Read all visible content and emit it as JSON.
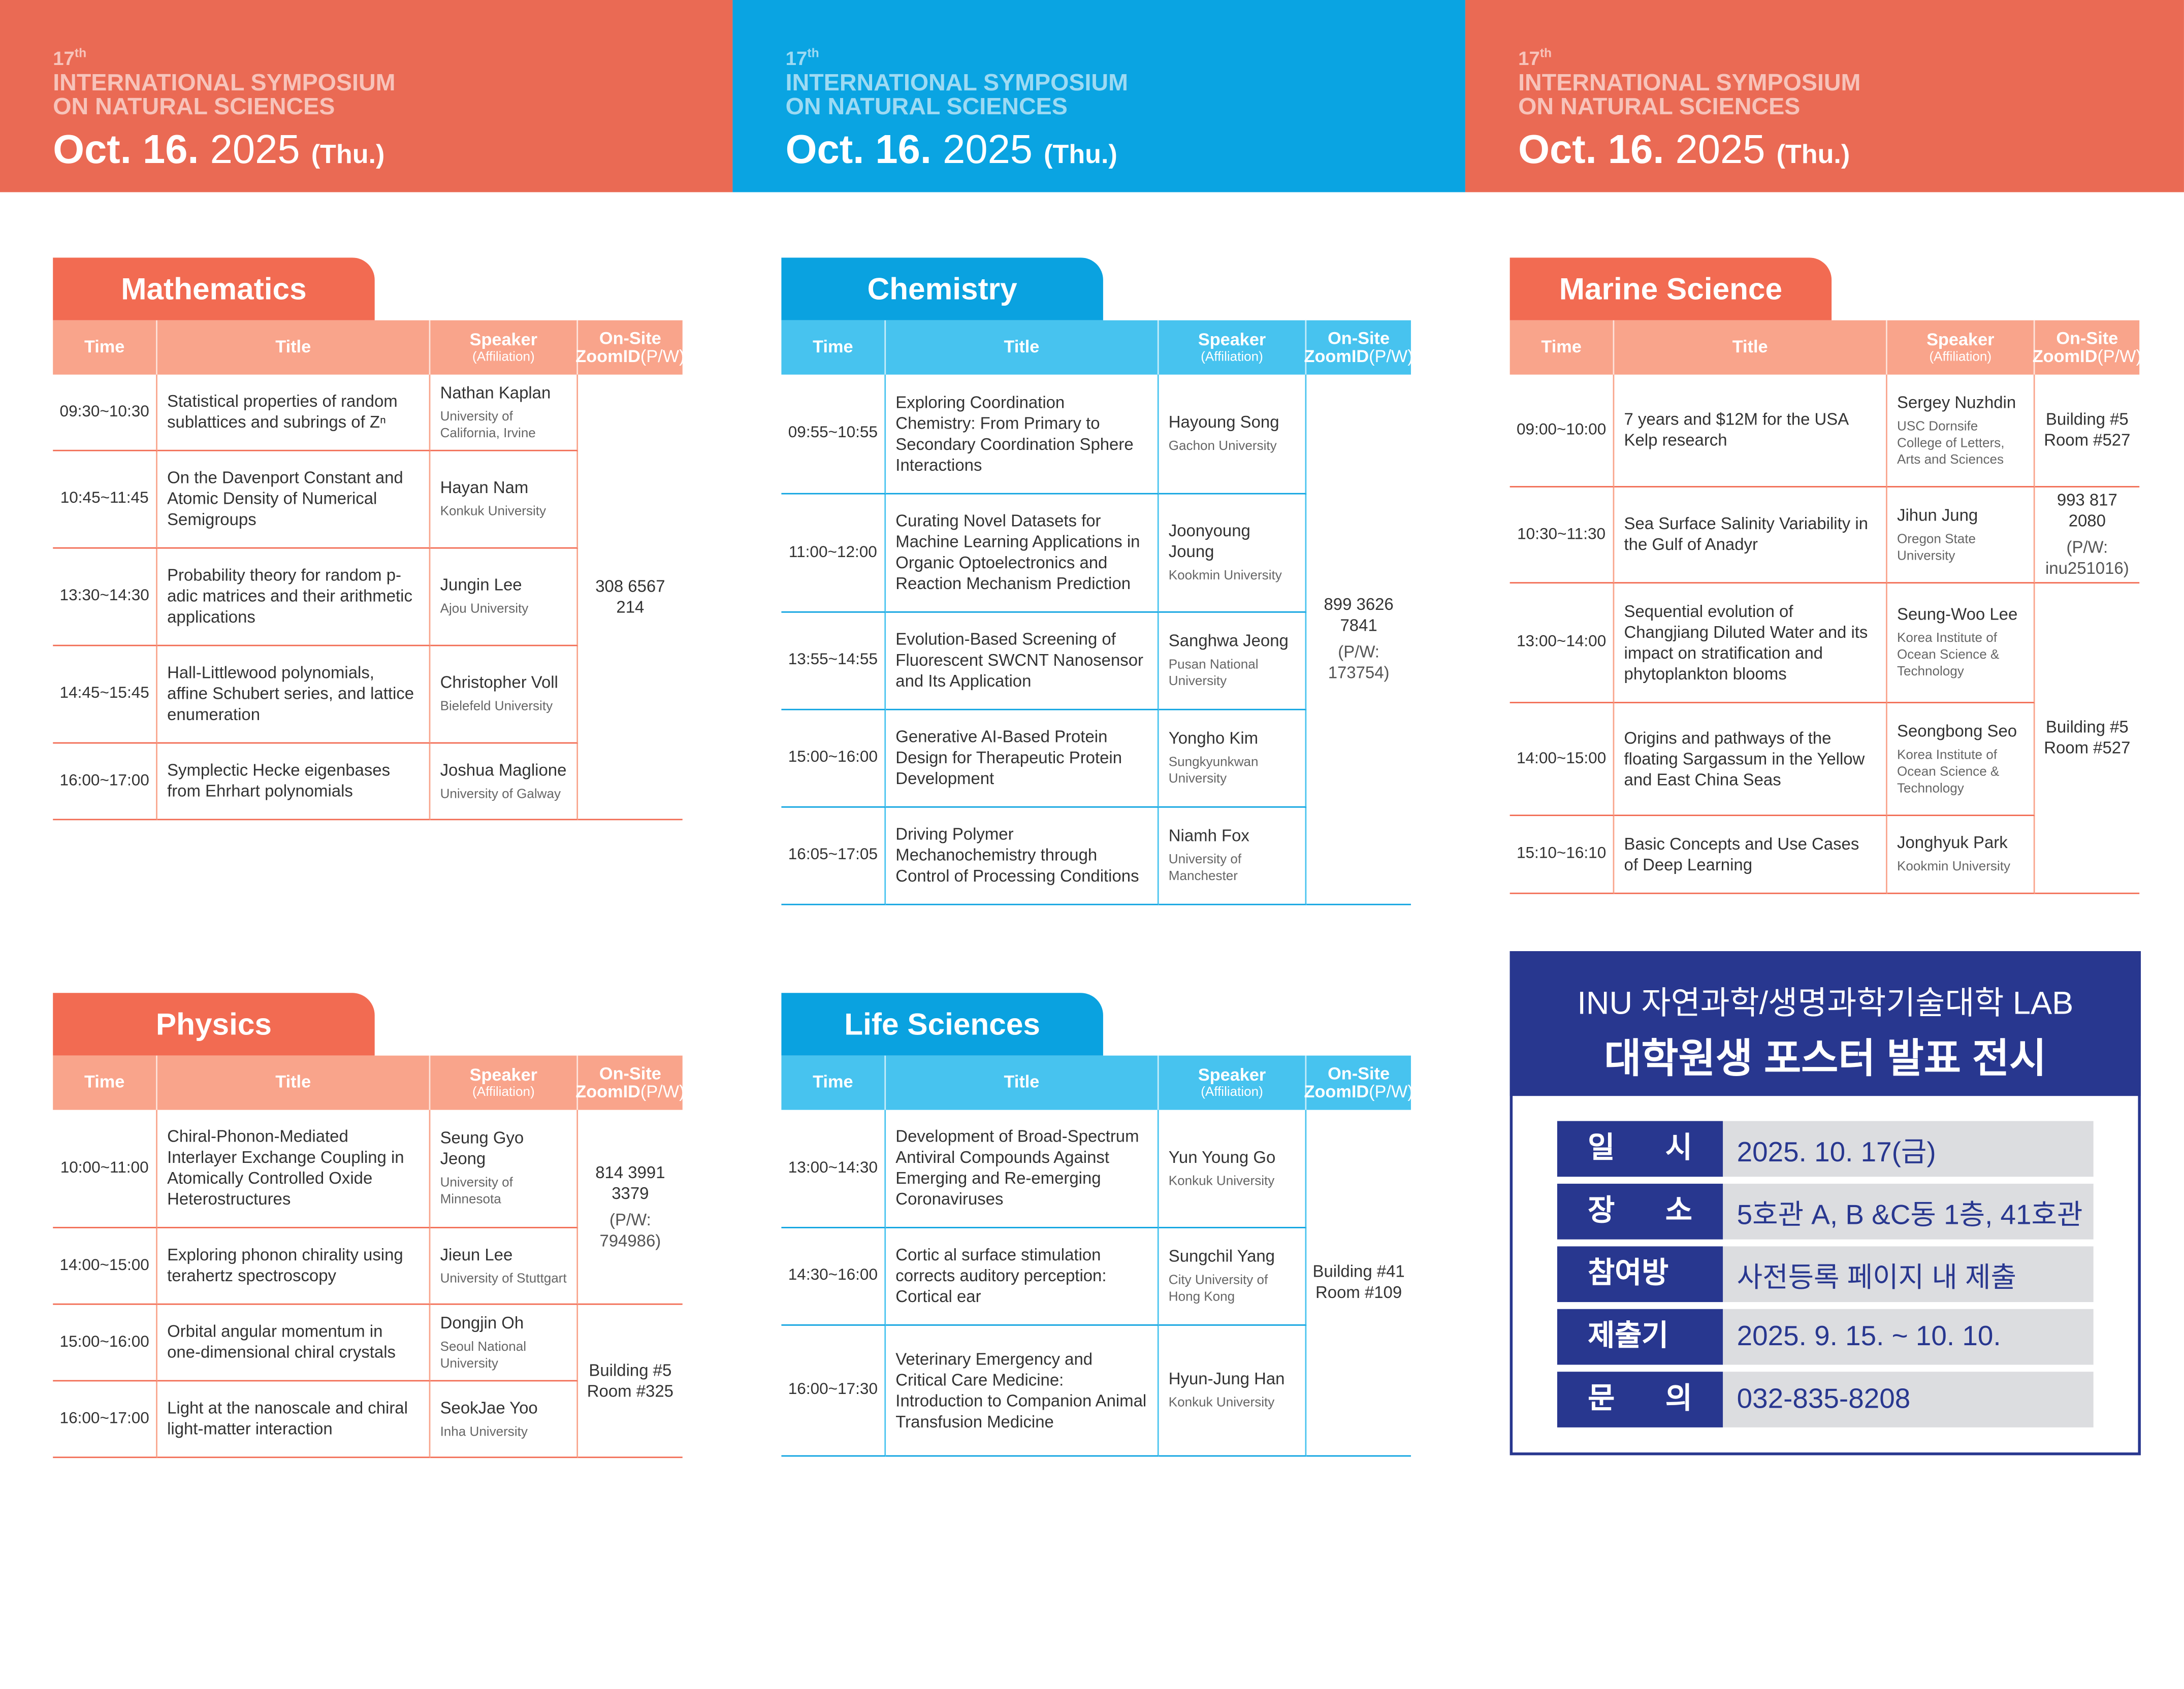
{
  "headers": [
    {
      "edition": "17",
      "sup": "th",
      "line1": "INTERNATIONAL SYMPOSIUM",
      "line2": "ON NATURAL SCIENCES",
      "date": "Oct. 16.",
      "year": "2025",
      "day": "(Thu.)",
      "color": "#ea6a54"
    },
    {
      "edition": "17",
      "sup": "th",
      "line1": "INTERNATIONAL SYMPOSIUM",
      "line2": "ON NATURAL SCIENCES",
      "date": "Oct. 16.",
      "year": "2025",
      "day": "(Thu.)",
      "color": "#0aa4e2"
    },
    {
      "edition": "17",
      "sup": "th",
      "line1": "INTERNATIONAL SYMPOSIUM",
      "line2": "ON NATURAL SCIENCES",
      "date": "Oct. 16.",
      "year": "2025",
      "day": "(Thu.)",
      "color": "#ea6a54"
    }
  ],
  "columns": {
    "time": "Time",
    "title": "Title",
    "speaker": "Speaker",
    "affiliation": "(Affiliation)",
    "onsite": "On-Site",
    "zoom": "ZoomID",
    "pw": "(P/W)"
  },
  "sessions": [
    {
      "name": "Mathematics",
      "tab_color": "#f26b52",
      "head_color": "#f9a48b",
      "rows": [
        {
          "time": "09:30~10:30",
          "title": "Statistical properties of random sublattices and subrings of Zⁿ",
          "speaker": "Nathan Kaplan",
          "affiliation": "University of California, Irvine",
          "room": {
            "text": "308 6567 214"
          }
        },
        {
          "time": "10:45~11:45",
          "title": "On the Davenport Constant and Atomic Density of Numerical Semigroups",
          "speaker": "Hayan Nam",
          "affiliation": "Konkuk University"
        },
        {
          "time": "13:30~14:30",
          "title": "Probability theory for random p-adic matrices and their arithmetic applications",
          "speaker": "Jungin Lee",
          "affiliation": "Ajou University"
        },
        {
          "time": "14:45~15:45",
          "title": "Hall-Littlewood polynomials, affine Schubert series, and lattice enumeration",
          "speaker": "Christopher Voll",
          "affiliation": "Bielefeld University"
        },
        {
          "time": "16:00~17:00",
          "title": "Symplectic Hecke eigenbases from Ehrhart polynomials",
          "speaker": "Joshua Maglione",
          "affiliation": "University of Galway"
        }
      ]
    },
    {
      "name": "Chemistry",
      "tab_color": "#0aa2e0",
      "head_color": "#47c3ef",
      "rows": [
        {
          "time": "09:55~10:55",
          "title": "Exploring Coordination Chemistry: From Primary to Secondary Coordination Sphere Interactions",
          "speaker": "Hayoung Song",
          "affiliation": "Gachon University",
          "room": {
            "text": "899 3626 7841",
            "pw": "(P/W: 173754)"
          }
        },
        {
          "time": "11:00~12:00",
          "title": "Curating Novel Datasets for Machine Learning Applications in Organic Optoelectronics and Reaction Mechanism Prediction",
          "speaker": "Joonyoung Joung",
          "affiliation": "Kookmin University"
        },
        {
          "time": "13:55~14:55",
          "title": "Evolution-Based Screening of Fluorescent SWCNT Nanosensor and Its Application",
          "speaker": "Sanghwa Jeong",
          "affiliation": "Pusan National University"
        },
        {
          "time": "15:00~16:00",
          "title": "Generative AI-Based Protein Design for Therapeutic Protein Development",
          "speaker": "Yongho Kim",
          "affiliation": "Sungkyunkwan University"
        },
        {
          "time": "16:05~17:05",
          "title": "Driving Polymer Mechanochemistry through Control of Processing Conditions",
          "speaker": "Niamh Fox",
          "affiliation": "University of Manchester"
        }
      ]
    },
    {
      "name": "Marine Science",
      "tab_color": "#f26b52",
      "head_color": "#f9a48b",
      "rows": [
        {
          "time": "09:00~10:00",
          "title": "7 years and $12M for the USA Kelp research",
          "speaker": "Sergey Nuzhdin",
          "affiliation": "USC Dornsife College of Letters, Arts and Sciences",
          "room": {
            "text": "Building #5 Room #527"
          }
        },
        {
          "time": "10:30~11:30",
          "title": "Sea Surface Salinity Variability in the Gulf of Anadyr",
          "speaker": "Jihun Jung",
          "affiliation": "Oregon State University",
          "room": {
            "text": "993 817 2080",
            "pw": "(P/W: inu251016)"
          }
        },
        {
          "time": "13:00~14:00",
          "title": "Sequential evolution of Changjiang Diluted Water and its impact on stratification and phytoplankton blooms",
          "speaker": "Seung-Woo Lee",
          "affiliation": "Korea Institute of Ocean Science & Technology",
          "room": {
            "text": "Building #5 Room #527"
          }
        },
        {
          "time": "14:00~15:00",
          "title": "Origins and pathways of the floating Sargassum in the Yellow and East China Seas",
          "speaker": "Seongbong Seo",
          "affiliation": "Korea Institute of Ocean Science & Technology"
        },
        {
          "time": "15:10~16:10",
          "title": "Basic Concepts and Use Cases of Deep Learning",
          "speaker": "Jonghyuk Park",
          "affiliation": "Kookmin University"
        }
      ]
    },
    {
      "name": "Physics",
      "tab_color": "#f26b52",
      "head_color": "#f9a48b",
      "rows": [
        {
          "time": "10:00~11:00",
          "title": "Chiral-Phonon-Mediated Interlayer Exchange Coupling in Atomically Controlled Oxide Heterostructures",
          "speaker": "Seung Gyo Jeong",
          "affiliation": "University of Minnesota",
          "room": {
            "text": "814 3991 3379",
            "pw": "(P/W: 794986)"
          }
        },
        {
          "time": "14:00~15:00",
          "title": "Exploring phonon chirality using terahertz spectroscopy",
          "speaker": "Jieun Lee",
          "affiliation": "University of Stuttgart"
        },
        {
          "time": "15:00~16:00",
          "title": "Orbital angular momentum in one-dimensional chiral crystals",
          "speaker": "Dongjin Oh",
          "affiliation": "Seoul National University",
          "room": {
            "text": "Building #5 Room #325"
          }
        },
        {
          "time": "16:00~17:00",
          "title": "Light at the nanoscale and chiral light-matter interaction",
          "speaker": "SeokJae Yoo",
          "affiliation": "Inha University"
        }
      ]
    },
    {
      "name": "Life Sciences",
      "tab_color": "#0aa2e0",
      "head_color": "#47c3ef",
      "rows": [
        {
          "time": "13:00~14:30",
          "title": "Development of Broad-Spectrum Antiviral Compounds Against Emerging and Re-emerging Coronaviruses",
          "speaker": "Yun Young Go",
          "affiliation": "Konkuk University",
          "room": {
            "text": "Building #41 Room #109"
          }
        },
        {
          "time": "14:30~16:00",
          "title": "Cortic al surface stimulation corrects auditory perception: Cortical ear",
          "speaker": "Sungchil Yang",
          "affiliation": "City University of Hong Kong"
        },
        {
          "time": "16:00~17:30",
          "title": "Veterinary Emergency and Critical Care Medicine: Introduction to Companion Animal Transfusion Medicine",
          "speaker": "Hyun-Jung Han",
          "affiliation": "Konkuk University"
        }
      ]
    }
  ],
  "info": {
    "title1": "INU 자연과학/생명과학기술대학 LAB",
    "title2": "대학원생 포스터 발표 전시",
    "rows": [
      {
        "label": "일 시",
        "value": "2025. 10. 17(금)"
      },
      {
        "label": "장 소",
        "value": "5호관 A, B &C동 1층, 41호관"
      },
      {
        "label": "참여방법",
        "value": "사전등록 페이지 내 제출"
      },
      {
        "label": "제출기한",
        "value": "2025. 9. 15. ~ 10. 10."
      },
      {
        "label": "문 의",
        "value": "032-835-8208"
      }
    ]
  }
}
